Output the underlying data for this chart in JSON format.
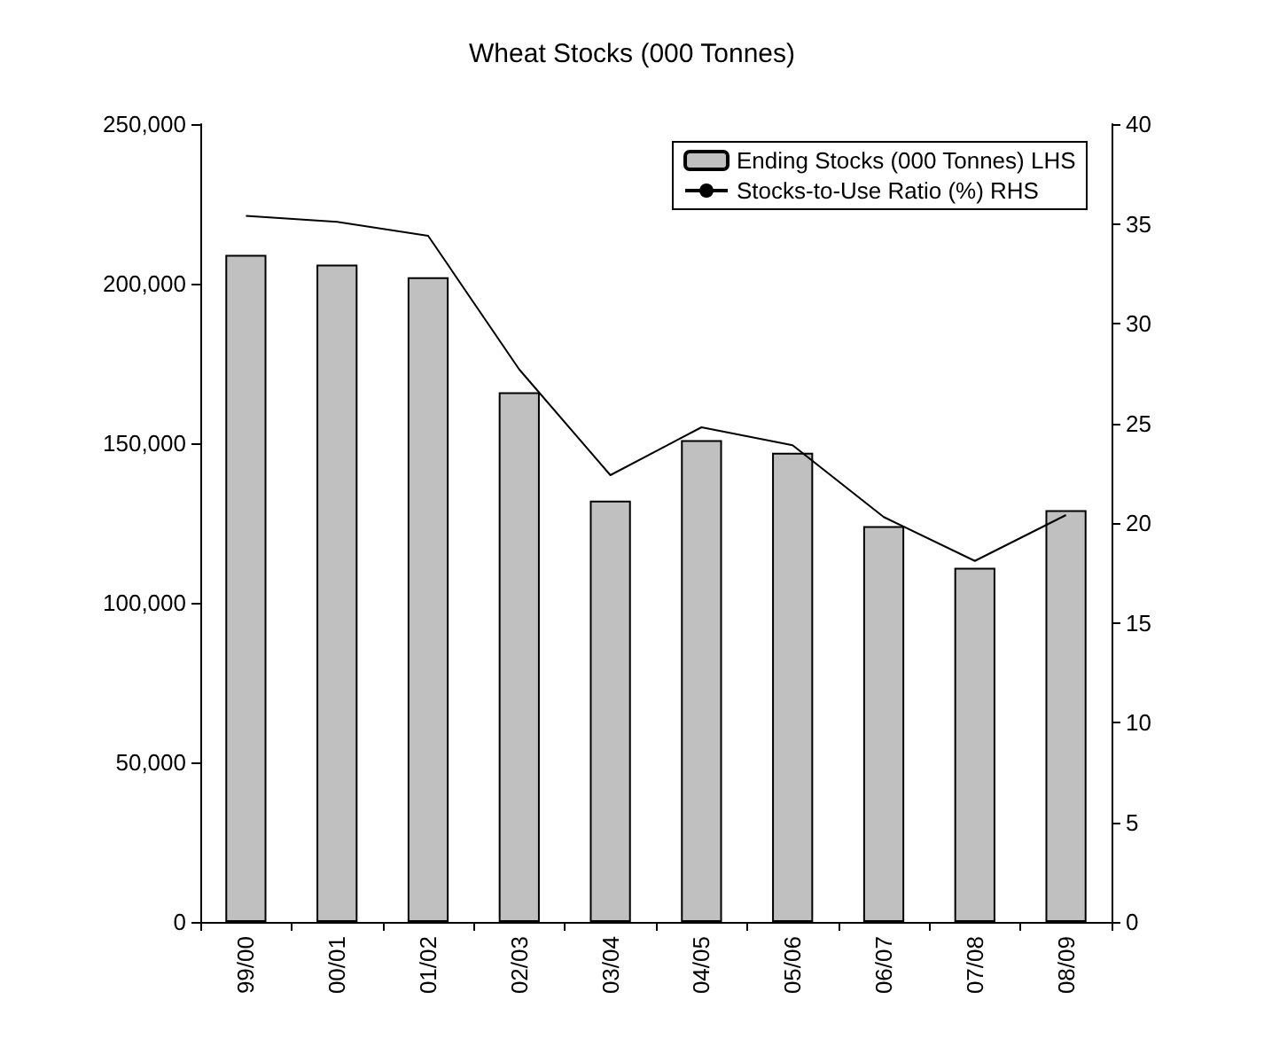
{
  "chart_data": {
    "type": "bar",
    "title": "Wheat Stocks (000 Tonnes)",
    "categories": [
      "99/00",
      "00/01",
      "01/02",
      "02/03",
      "03/04",
      "04/05",
      "05/06",
      "06/07",
      "07/08",
      "08/09"
    ],
    "series": [
      {
        "name": "Ending Stocks (000 Tonnes) LHS",
        "color": "#c0c0c0",
        "values": [
          209000,
          206000,
          202000,
          166000,
          132000,
          151000,
          147000,
          124000,
          111000,
          129000
        ]
      },
      {
        "name": "Stocks-to-Use Ratio (%) RHS",
        "type": "line",
        "axis": "y2",
        "color": "#000000",
        "values": [
          35.4,
          35.1,
          34.4,
          27.7,
          22.4,
          24.8,
          23.9,
          20.3,
          18.1,
          20.4
        ]
      }
    ],
    "ylim": [
      0,
      250000
    ],
    "yticks": [
      {
        "value": 0,
        "label": "0"
      },
      {
        "value": 50000,
        "label": "50,000"
      },
      {
        "value": 100000,
        "label": "100,000"
      },
      {
        "value": 150000,
        "label": "150,000"
      },
      {
        "value": 200000,
        "label": "200,000"
      },
      {
        "value": 250000,
        "label": "250,000"
      }
    ],
    "y2lim": [
      0,
      40
    ],
    "y2ticks": [
      0,
      5,
      10,
      15,
      20,
      25,
      30,
      35,
      40
    ],
    "grid": false,
    "legend": "top right",
    "marker": "none",
    "line_style": "solid"
  }
}
